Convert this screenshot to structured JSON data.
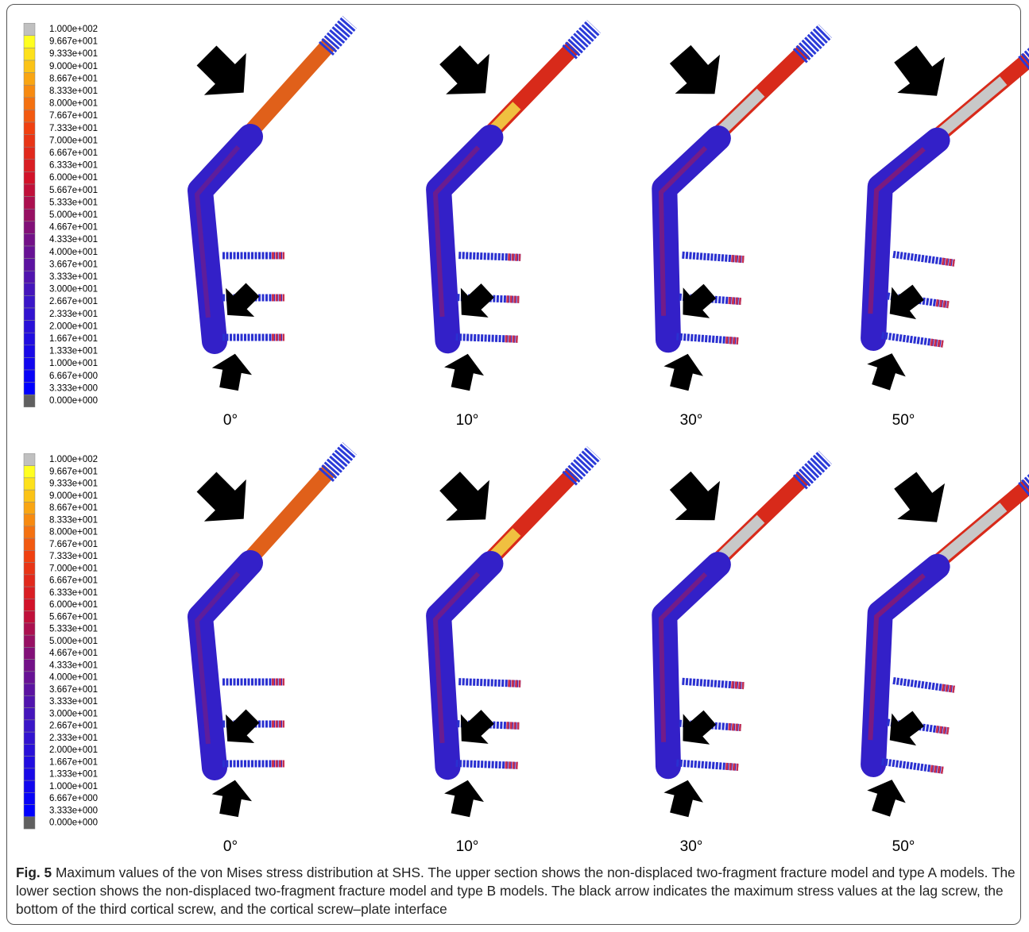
{
  "legend_labels": [
    "1.000e+002",
    "9.667e+001",
    "9.333e+001",
    "9.000e+001",
    "8.667e+001",
    "8.333e+001",
    "8.000e+001",
    "7.667e+001",
    "7.333e+001",
    "7.000e+001",
    "6.667e+001",
    "6.333e+001",
    "6.000e+001",
    "5.667e+001",
    "5.333e+001",
    "5.000e+001",
    "4.667e+001",
    "4.333e+001",
    "4.000e+001",
    "3.667e+001",
    "3.333e+001",
    "3.000e+001",
    "2.667e+001",
    "2.333e+001",
    "2.000e+001",
    "1.667e+001",
    "1.333e+001",
    "1.000e+001",
    "6.667e+000",
    "3.333e+000",
    "0.000e+000"
  ],
  "panels": [
    {
      "angles": [
        "0°",
        "10°",
        "30°",
        "50°"
      ]
    },
    {
      "angles": [
        "0°",
        "10°",
        "30°",
        "50°"
      ]
    }
  ],
  "caption": {
    "label": "Fig. 5",
    "text": "Maximum values of the von Mises stress distribution at SHS. The upper section shows the non-displaced two-fragment fracture model and type A models. The lower section shows the non-displaced two-fragment fracture model and type B models. The black arrow indicates the maximum stress values at the lag screw, the bottom of the third cortical screw, and the cortical screw–plate interface"
  }
}
